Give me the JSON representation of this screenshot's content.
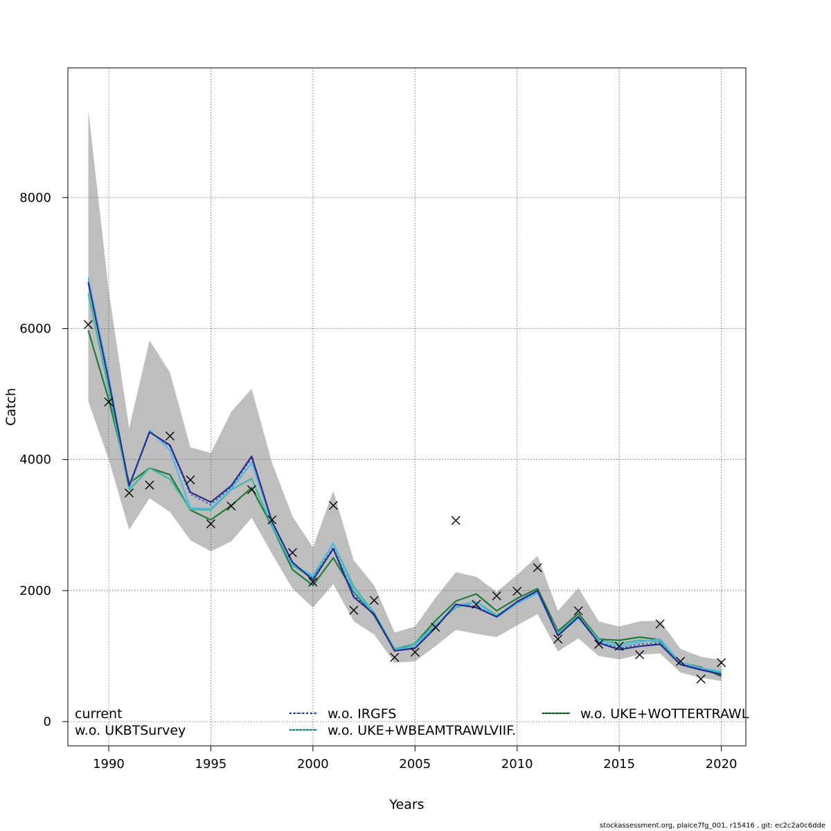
{
  "chart_data": {
    "type": "line",
    "title": "",
    "xlabel": "Years",
    "ylabel": "Catch",
    "xlim": [
      1988,
      2021.2
    ],
    "ylim": [
      -370,
      9980
    ],
    "xticks": [
      1990,
      1995,
      2000,
      2005,
      2010,
      2015,
      2020
    ],
    "yticks": [
      0,
      2000,
      4000,
      6000,
      8000
    ],
    "grid": true,
    "legend_position": "bottom",
    "x": [
      1989,
      1990,
      1991,
      1992,
      1993,
      1994,
      1995,
      1996,
      1997,
      1998,
      1999,
      2000,
      2001,
      2002,
      2003,
      2004,
      2005,
      2006,
      2007,
      2008,
      2009,
      2010,
      2011,
      2012,
      2013,
      2014,
      2015,
      2016,
      2017,
      2018,
      2019,
      2020
    ],
    "band": {
      "upper": [
        9340,
        6580,
        4480,
        5820,
        5330,
        4190,
        4100,
        4730,
        5080,
        3950,
        3130,
        2660,
        3520,
        2460,
        2080,
        1360,
        1450,
        1890,
        2280,
        2210,
        1980,
        2240,
        2530,
        1690,
        2040,
        1530,
        1450,
        1530,
        1540,
        1110,
        990,
        940
      ],
      "lower": [
        4890,
        4000,
        2930,
        3410,
        3200,
        2770,
        2600,
        2750,
        3110,
        2560,
        2030,
        1740,
        2100,
        1530,
        1330,
        900,
        920,
        1150,
        1400,
        1340,
        1290,
        1470,
        1640,
        1070,
        1270,
        1000,
        950,
        1020,
        1040,
        750,
        670,
        620
      ]
    },
    "observed": [
      6060,
      4880,
      3490,
      3610,
      4360,
      3690,
      3020,
      3290,
      3540,
      3080,
      2580,
      2130,
      3300,
      1700,
      1850,
      980,
      1060,
      1440,
      3070,
      1790,
      1920,
      1990,
      2350,
      1260,
      1690,
      1180,
      1150,
      1020,
      1490,
      920,
      650,
      900
    ],
    "series": [
      {
        "name": "current",
        "color": "#2b2b8c",
        "dashed": false,
        "values": [
          6700,
          5200,
          3600,
          4420,
          4220,
          3500,
          3350,
          3600,
          4050,
          3050,
          2430,
          2160,
          2640,
          1900,
          1640,
          1080,
          1120,
          1430,
          1790,
          1740,
          1600,
          1830,
          2000,
          1310,
          1600,
          1200,
          1100,
          1150,
          1180,
          870,
          790,
          720
        ]
      },
      {
        "name": "w.o. UKBTSurvey",
        "color": "#57b6e8",
        "dashed": false,
        "values": [
          6780,
          5270,
          3560,
          4450,
          4140,
          3260,
          3250,
          3550,
          3950,
          3030,
          2400,
          2230,
          2720,
          2000,
          1650,
          1090,
          1150,
          1470,
          1770,
          1830,
          1590,
          1800,
          1960,
          1320,
          1580,
          1220,
          1150,
          1210,
          1260,
          900,
          820,
          760
        ]
      },
      {
        "name": "w.o. IRGFS",
        "color": "#1f5fa8",
        "dashed": true,
        "values": [
          6720,
          5220,
          3590,
          4420,
          4200,
          3470,
          3310,
          3580,
          4020,
          3050,
          2420,
          2180,
          2660,
          1930,
          1640,
          1090,
          1130,
          1440,
          1790,
          1760,
          1600,
          1820,
          1990,
          1320,
          1600,
          1210,
          1120,
          1180,
          1200,
          880,
          800,
          730
        ]
      },
      {
        "name": "w.o. UKE+WBEAMTRAWLVIIF.",
        "color": "#3db8a0",
        "dashed": false,
        "values": [
          6540,
          5060,
          3540,
          3870,
          3700,
          3240,
          3230,
          3540,
          3710,
          2980,
          2380,
          2200,
          2720,
          2060,
          1660,
          1110,
          1190,
          1480,
          1740,
          1830,
          1620,
          1820,
          1970,
          1350,
          1610,
          1250,
          1190,
          1240,
          1220,
          880,
          810,
          740
        ]
      },
      {
        "name": "w.o. UKE+WOTTERTRAWL",
        "color": "#1f7a3a",
        "dashed": false,
        "values": [
          5970,
          4920,
          3640,
          3870,
          3770,
          3230,
          3080,
          3300,
          3570,
          2980,
          2320,
          2080,
          2500,
          1980,
          1620,
          1090,
          1190,
          1540,
          1840,
          1950,
          1690,
          1880,
          2030,
          1380,
          1650,
          1260,
          1240,
          1290,
          1250,
          900,
          830,
          690
        ]
      }
    ]
  },
  "footer": "stockassessment.org, plaice7fg_001, r15416 , git: ec2c2a0c6dde"
}
